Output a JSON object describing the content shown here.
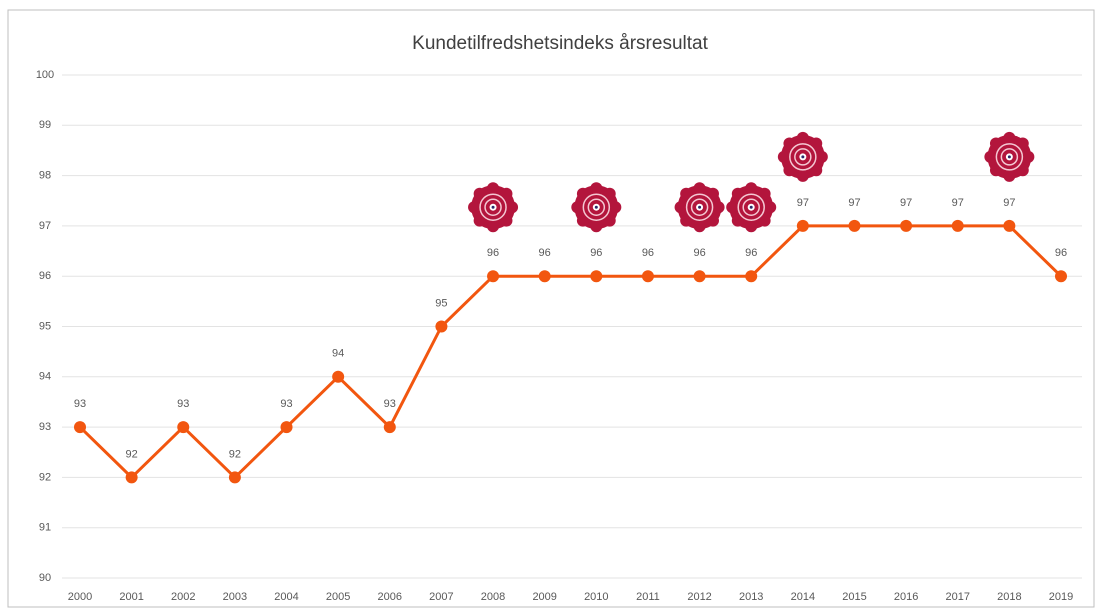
{
  "chart_data": {
    "type": "line",
    "title": "Kundetilfredshetsindeks årsresultat",
    "categories": [
      "2000",
      "2001",
      "2002",
      "2003",
      "2004",
      "2005",
      "2006",
      "2007",
      "2008",
      "2009",
      "2010",
      "2011",
      "2012",
      "2013",
      "2014",
      "2015",
      "2016",
      "2017",
      "2018",
      "2019"
    ],
    "values": [
      93,
      92,
      93,
      92,
      93,
      94,
      93,
      95,
      96,
      96,
      96,
      96,
      96,
      96,
      97,
      97,
      97,
      97,
      97,
      96
    ],
    "color": "#f2560f",
    "ylim": [
      90,
      100
    ],
    "yticks": [
      90,
      91,
      92,
      93,
      94,
      95,
      96,
      97,
      98,
      99,
      100
    ],
    "grid": true
  }
}
